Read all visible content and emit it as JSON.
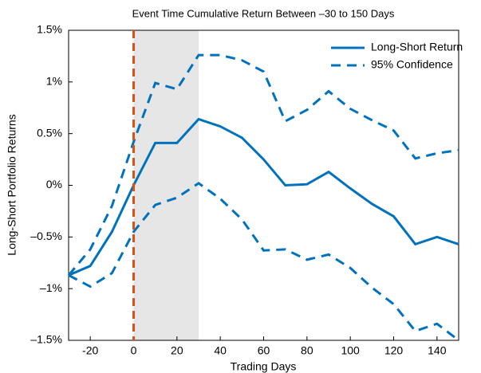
{
  "chart_data": {
    "type": "line",
    "title": "Event Time Cumulative Return Between –30 to 150 Days",
    "xlabel": "Trading Days",
    "ylabel": "Long-Short Portfolio Returns",
    "x": [
      -30,
      -20,
      -10,
      0,
      10,
      20,
      30,
      40,
      50,
      60,
      70,
      80,
      90,
      100,
      110,
      120,
      130,
      140,
      150
    ],
    "series": [
      {
        "name": "Long-Short Return",
        "color": "#0072bd",
        "dash": false,
        "values": [
          -0.87,
          -0.78,
          -0.45,
          0.0,
          0.41,
          0.41,
          0.64,
          0.57,
          0.46,
          0.25,
          0.0,
          0.01,
          0.13,
          -0.03,
          -0.18,
          -0.3,
          -0.57,
          -0.5,
          -0.57
        ]
      },
      {
        "name": "95% Confidence",
        "color": "#0072bd",
        "dash": true,
        "values": [
          -0.87,
          -0.62,
          -0.2,
          0.42,
          0.99,
          0.93,
          1.26,
          1.26,
          1.21,
          1.1,
          0.62,
          0.73,
          0.91,
          0.74,
          0.63,
          0.53,
          0.26,
          0.31,
          0.34
        ],
        "lower": [
          -0.87,
          -0.98,
          -0.85,
          -0.45,
          -0.19,
          -0.12,
          0.02,
          -0.13,
          -0.33,
          -0.63,
          -0.62,
          -0.72,
          -0.67,
          -0.8,
          -0.99,
          -1.15,
          -1.41,
          -1.34,
          -1.5
        ]
      }
    ],
    "shade": [
      0,
      30
    ],
    "shade_color": "#e6e6e6",
    "vline": 0,
    "vline_color": "#d95319",
    "xlim": [
      -30,
      150
    ],
    "xticks": [
      -20,
      0,
      20,
      40,
      60,
      80,
      100,
      120,
      140
    ],
    "ylim": [
      -1.5,
      1.5
    ],
    "yticks": [
      {
        "value": -1.5,
        "label": "–1.5%"
      },
      {
        "value": -1,
        "label": "–1%"
      },
      {
        "value": -0.5,
        "label": "–0.5%"
      },
      {
        "value": 0,
        "label": "0%"
      },
      {
        "value": 0.5,
        "label": "0.5%"
      },
      {
        "value": 1,
        "label": "1%"
      },
      {
        "value": 1.5,
        "label": "1.5%"
      }
    ],
    "legend": "upper right",
    "grid": false
  }
}
